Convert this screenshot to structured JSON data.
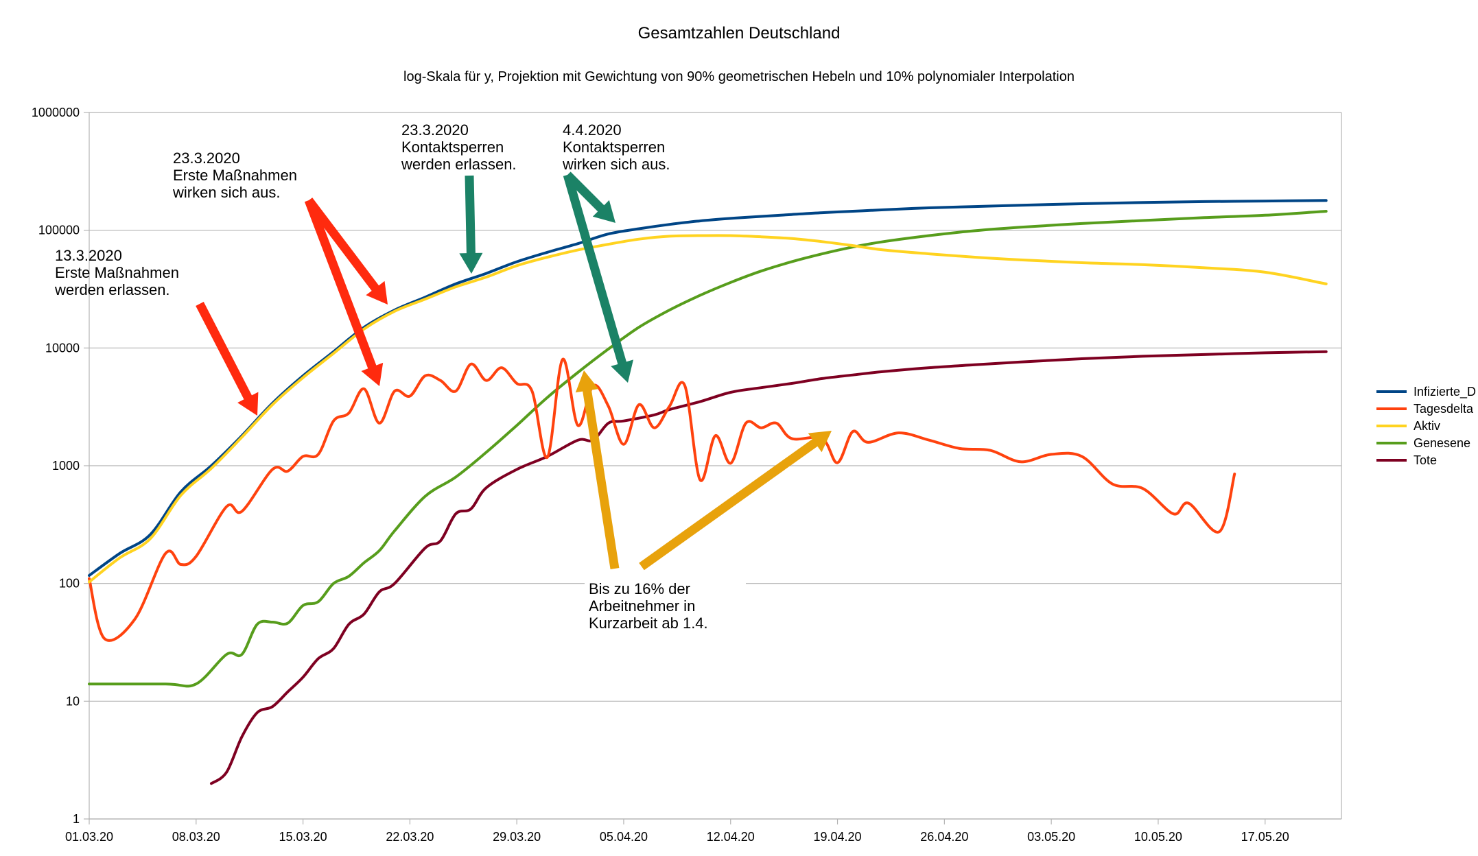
{
  "chart_data": {
    "type": "line",
    "title": "Gesamtzahlen Deutschland",
    "subtitle": "log-Skala für y, Projektion mit Gewichtung von 90% geometrischen Hebeln und 10% polynomialer Interpolation",
    "xlabel": "",
    "ylabel": "",
    "y_scale": "log",
    "ylim": [
      1,
      1000000
    ],
    "x_range": [
      "2020-03-01",
      "2020-05-22"
    ],
    "y_ticks": [
      {
        "value": 1,
        "label": "1"
      },
      {
        "value": 10,
        "label": "10"
      },
      {
        "value": 100,
        "label": "100"
      },
      {
        "value": 1000,
        "label": "1000"
      },
      {
        "value": 10000,
        "label": "10000"
      },
      {
        "value": 100000,
        "label": "100000"
      },
      {
        "value": 1000000,
        "label": "1000000"
      }
    ],
    "x_ticks": [
      {
        "date": "2020-03-01",
        "label": "01.03.20"
      },
      {
        "date": "2020-03-08",
        "label": "08.03.20"
      },
      {
        "date": "2020-03-15",
        "label": "15.03.20"
      },
      {
        "date": "2020-03-22",
        "label": "22.03.20"
      },
      {
        "date": "2020-03-29",
        "label": "29.03.20"
      },
      {
        "date": "2020-04-05",
        "label": "05.04.20"
      },
      {
        "date": "2020-04-12",
        "label": "12.04.20"
      },
      {
        "date": "2020-04-19",
        "label": "19.04.20"
      },
      {
        "date": "2020-04-26",
        "label": "26.04.20"
      },
      {
        "date": "2020-05-03",
        "label": "03.05.20"
      },
      {
        "date": "2020-05-10",
        "label": "10.05.20"
      },
      {
        "date": "2020-05-17",
        "label": "17.05.20"
      }
    ],
    "grid": true,
    "legend_position": "right",
    "series": [
      {
        "name": "Infizierte_D",
        "color": "#004586",
        "points": [
          [
            "2020-03-01",
            117
          ],
          [
            "2020-03-03",
            180
          ],
          [
            "2020-03-05",
            260
          ],
          [
            "2020-03-07",
            600
          ],
          [
            "2020-03-09",
            1000
          ],
          [
            "2020-03-11",
            1800
          ],
          [
            "2020-03-13",
            3400
          ],
          [
            "2020-03-15",
            5800
          ],
          [
            "2020-03-17",
            9300
          ],
          [
            "2020-03-19",
            15000
          ],
          [
            "2020-03-21",
            21000
          ],
          [
            "2020-03-23",
            27000
          ],
          [
            "2020-03-25",
            35000
          ],
          [
            "2020-03-27",
            43000
          ],
          [
            "2020-03-29",
            54000
          ],
          [
            "2020-03-31",
            65000
          ],
          [
            "2020-04-02",
            77000
          ],
          [
            "2020-04-04",
            93000
          ],
          [
            "2020-04-06",
            103000
          ],
          [
            "2020-04-08",
            112000
          ],
          [
            "2020-04-10",
            120000
          ],
          [
            "2020-04-12",
            126000
          ],
          [
            "2020-04-14",
            131000
          ],
          [
            "2020-04-16",
            136000
          ],
          [
            "2020-04-18",
            141000
          ],
          [
            "2020-04-20",
            145000
          ],
          [
            "2020-04-22",
            149000
          ],
          [
            "2020-04-25",
            155000
          ],
          [
            "2020-04-28",
            159000
          ],
          [
            "2020-05-01",
            163000
          ],
          [
            "2020-05-05",
            168000
          ],
          [
            "2020-05-09",
            172000
          ],
          [
            "2020-05-13",
            175000
          ],
          [
            "2020-05-17",
            177000
          ],
          [
            "2020-05-21",
            179000
          ]
        ]
      },
      {
        "name": "Tagesdelta",
        "color": "#ff420e",
        "points": [
          [
            "2020-03-01",
            110
          ],
          [
            "2020-03-02",
            34
          ],
          [
            "2020-03-04",
            50
          ],
          [
            "2020-03-06",
            180
          ],
          [
            "2020-03-07",
            145
          ],
          [
            "2020-03-08",
            170
          ],
          [
            "2020-03-10",
            450
          ],
          [
            "2020-03-11",
            410
          ],
          [
            "2020-03-13",
            930
          ],
          [
            "2020-03-14",
            900
          ],
          [
            "2020-03-15",
            1200
          ],
          [
            "2020-03-16",
            1250
          ],
          [
            "2020-03-17",
            2400
          ],
          [
            "2020-03-18",
            2800
          ],
          [
            "2020-03-19",
            4500
          ],
          [
            "2020-03-20",
            2300
          ],
          [
            "2020-03-21",
            4300
          ],
          [
            "2020-03-22",
            3900
          ],
          [
            "2020-03-23",
            5800
          ],
          [
            "2020-03-24",
            5300
          ],
          [
            "2020-03-25",
            4300
          ],
          [
            "2020-03-26",
            7300
          ],
          [
            "2020-03-27",
            5300
          ],
          [
            "2020-03-28",
            6800
          ],
          [
            "2020-03-29",
            5000
          ],
          [
            "2020-03-30",
            4300
          ],
          [
            "2020-03-31",
            1180
          ],
          [
            "2020-04-01",
            8000
          ],
          [
            "2020-04-02",
            2200
          ],
          [
            "2020-04-03",
            4800
          ],
          [
            "2020-04-04",
            3200
          ],
          [
            "2020-04-05",
            1520
          ],
          [
            "2020-04-06",
            3300
          ],
          [
            "2020-04-07",
            2100
          ],
          [
            "2020-04-08",
            3200
          ],
          [
            "2020-04-09",
            4800
          ],
          [
            "2020-04-10",
            760
          ],
          [
            "2020-04-11",
            1800
          ],
          [
            "2020-04-12",
            1050
          ],
          [
            "2020-04-13",
            2300
          ],
          [
            "2020-04-14",
            2100
          ],
          [
            "2020-04-15",
            2300
          ],
          [
            "2020-04-16",
            1700
          ],
          [
            "2020-04-18",
            1700
          ],
          [
            "2020-04-19",
            1060
          ],
          [
            "2020-04-20",
            1950
          ],
          [
            "2020-04-21",
            1580
          ],
          [
            "2020-04-23",
            1900
          ],
          [
            "2020-04-25",
            1650
          ],
          [
            "2020-04-27",
            1400
          ],
          [
            "2020-04-29",
            1350
          ],
          [
            "2020-05-01",
            1080
          ],
          [
            "2020-05-03",
            1250
          ],
          [
            "2020-05-05",
            1200
          ],
          [
            "2020-05-07",
            700
          ],
          [
            "2020-05-09",
            640
          ],
          [
            "2020-05-11",
            390
          ],
          [
            "2020-05-12",
            480
          ],
          [
            "2020-05-14",
            275
          ],
          [
            "2020-05-15",
            850
          ]
        ]
      },
      {
        "name": "Aktiv",
        "color": "#ffd320",
        "points": [
          [
            "2020-03-01",
            103
          ],
          [
            "2020-03-03",
            165
          ],
          [
            "2020-03-05",
            240
          ],
          [
            "2020-03-07",
            560
          ],
          [
            "2020-03-09",
            950
          ],
          [
            "2020-03-11",
            1750
          ],
          [
            "2020-03-13",
            3300
          ],
          [
            "2020-03-15",
            5600
          ],
          [
            "2020-03-17",
            9000
          ],
          [
            "2020-03-19",
            14500
          ],
          [
            "2020-03-21",
            20500
          ],
          [
            "2020-03-23",
            26000
          ],
          [
            "2020-03-25",
            33000
          ],
          [
            "2020-03-27",
            40000
          ],
          [
            "2020-03-29",
            50000
          ],
          [
            "2020-03-31",
            59000
          ],
          [
            "2020-04-02",
            68000
          ],
          [
            "2020-04-04",
            76000
          ],
          [
            "2020-04-06",
            84000
          ],
          [
            "2020-04-08",
            89000
          ],
          [
            "2020-04-10",
            90000
          ],
          [
            "2020-04-12",
            90000
          ],
          [
            "2020-04-14",
            88000
          ],
          [
            "2020-04-16",
            85000
          ],
          [
            "2020-04-18",
            80000
          ],
          [
            "2020-04-20",
            74000
          ],
          [
            "2020-04-22",
            68000
          ],
          [
            "2020-04-25",
            63000
          ],
          [
            "2020-04-28",
            59000
          ],
          [
            "2020-05-01",
            56000
          ],
          [
            "2020-05-05",
            53000
          ],
          [
            "2020-05-09",
            51000
          ],
          [
            "2020-05-13",
            48000
          ],
          [
            "2020-05-17",
            44000
          ],
          [
            "2020-05-21",
            35000
          ]
        ]
      },
      {
        "name": "Genesene",
        "color": "#579d1c",
        "points": [
          [
            "2020-03-01",
            14
          ],
          [
            "2020-03-06",
            14
          ],
          [
            "2020-03-08",
            14
          ],
          [
            "2020-03-10",
            25
          ],
          [
            "2020-03-11",
            25
          ],
          [
            "2020-03-12",
            45
          ],
          [
            "2020-03-13",
            47
          ],
          [
            "2020-03-14",
            46
          ],
          [
            "2020-03-15",
            65
          ],
          [
            "2020-03-16",
            70
          ],
          [
            "2020-03-17",
            100
          ],
          [
            "2020-03-18",
            115
          ],
          [
            "2020-03-19",
            150
          ],
          [
            "2020-03-20",
            190
          ],
          [
            "2020-03-21",
            280
          ],
          [
            "2020-03-23",
            550
          ],
          [
            "2020-03-25",
            800
          ],
          [
            "2020-03-27",
            1300
          ],
          [
            "2020-03-29",
            2200
          ],
          [
            "2020-03-31",
            3800
          ],
          [
            "2020-04-02",
            6200
          ],
          [
            "2020-04-04",
            9800
          ],
          [
            "2020-04-06",
            15000
          ],
          [
            "2020-04-08",
            21000
          ],
          [
            "2020-04-10",
            28000
          ],
          [
            "2020-04-12",
            36000
          ],
          [
            "2020-04-14",
            45000
          ],
          [
            "2020-04-16",
            54000
          ],
          [
            "2020-04-18",
            63000
          ],
          [
            "2020-04-20",
            72000
          ],
          [
            "2020-04-22",
            80000
          ],
          [
            "2020-04-25",
            90000
          ],
          [
            "2020-04-28",
            99000
          ],
          [
            "2020-05-01",
            106000
          ],
          [
            "2020-05-05",
            114000
          ],
          [
            "2020-05-09",
            121000
          ],
          [
            "2020-05-13",
            128000
          ],
          [
            "2020-05-17",
            134000
          ],
          [
            "2020-05-21",
            145000
          ]
        ]
      },
      {
        "name": "Tote",
        "color": "#7e0021",
        "points": [
          [
            "2020-03-09",
            2
          ],
          [
            "2020-03-10",
            2.5
          ],
          [
            "2020-03-11",
            5
          ],
          [
            "2020-03-12",
            8
          ],
          [
            "2020-03-13",
            9
          ],
          [
            "2020-03-14",
            12
          ],
          [
            "2020-03-15",
            16
          ],
          [
            "2020-03-16",
            23
          ],
          [
            "2020-03-17",
            28
          ],
          [
            "2020-03-18",
            45
          ],
          [
            "2020-03-19",
            55
          ],
          [
            "2020-03-20",
            85
          ],
          [
            "2020-03-21",
            100
          ],
          [
            "2020-03-23",
            200
          ],
          [
            "2020-03-24",
            230
          ],
          [
            "2020-03-25",
            390
          ],
          [
            "2020-03-26",
            430
          ],
          [
            "2020-03-27",
            650
          ],
          [
            "2020-03-29",
            930
          ],
          [
            "2020-03-31",
            1200
          ],
          [
            "2020-04-02",
            1650
          ],
          [
            "2020-04-03",
            1650
          ],
          [
            "2020-04-04",
            2300
          ],
          [
            "2020-04-05",
            2400
          ],
          [
            "2020-04-07",
            2700
          ],
          [
            "2020-04-08",
            3000
          ],
          [
            "2020-04-10",
            3500
          ],
          [
            "2020-04-12",
            4200
          ],
          [
            "2020-04-14",
            4600
          ],
          [
            "2020-04-16",
            5000
          ],
          [
            "2020-04-18",
            5500
          ],
          [
            "2020-04-20",
            5900
          ],
          [
            "2020-04-22",
            6300
          ],
          [
            "2020-04-25",
            6800
          ],
          [
            "2020-04-28",
            7200
          ],
          [
            "2020-05-01",
            7600
          ],
          [
            "2020-05-05",
            8100
          ],
          [
            "2020-05-09",
            8500
          ],
          [
            "2020-05-13",
            8800
          ],
          [
            "2020-05-17",
            9100
          ],
          [
            "2020-05-21",
            9300
          ]
        ]
      }
    ],
    "annotations": [
      {
        "text": [
          "13.3.2020",
          "Erste Maßnahmen",
          "werden erlassen."
        ],
        "color": "#ff2a0e"
      },
      {
        "text": [
          "23.3.2020",
          "Erste Maßnahmen",
          "wirken sich aus."
        ],
        "color": "#ff2a0e"
      },
      {
        "text": [
          "23.3.2020",
          "Kontaktsperren",
          "werden erlassen."
        ],
        "color": "#1b8266"
      },
      {
        "text": [
          "4.4.2020",
          "Kontaktsperren",
          "wirken sich aus."
        ],
        "color": "#1b8266"
      },
      {
        "text": [
          "Bis zu 16% der",
          "Arbeitnehmer in",
          "Kurzarbeit ab 1.4."
        ],
        "color": "#e8a20c"
      }
    ]
  }
}
